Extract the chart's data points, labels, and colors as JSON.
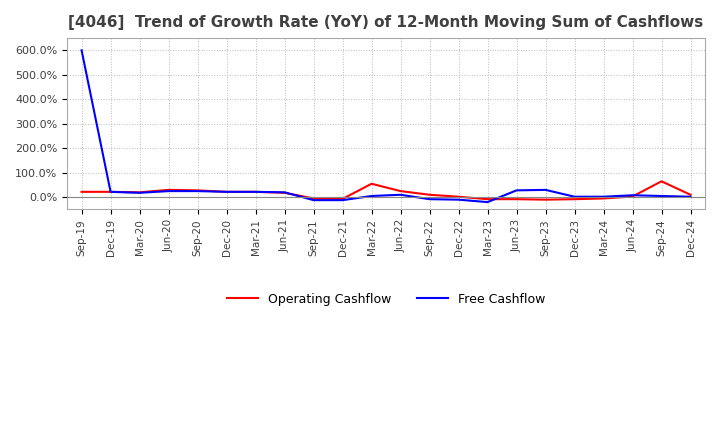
{
  "title": "[4046]  Trend of Growth Rate (YoY) of 12-Month Moving Sum of Cashflows",
  "title_color": "#404040",
  "background_color": "#ffffff",
  "grid_color": "#bbbbbb",
  "xlabels": [
    "Sep-19",
    "Dec-19",
    "Mar-20",
    "Jun-20",
    "Sep-20",
    "Dec-20",
    "Mar-21",
    "Jun-21",
    "Sep-21",
    "Dec-21",
    "Mar-22",
    "Jun-22",
    "Sep-22",
    "Dec-22",
    "Mar-23",
    "Jun-23",
    "Sep-23",
    "Dec-23",
    "Mar-24",
    "Jun-24",
    "Sep-24",
    "Dec-24"
  ],
  "operating_cashflow": [
    0.22,
    0.22,
    0.2,
    0.3,
    0.28,
    0.22,
    0.22,
    0.18,
    -0.05,
    -0.07,
    0.55,
    0.25,
    0.1,
    0.02,
    -0.08,
    -0.08,
    -0.1,
    -0.08,
    -0.05,
    0.03,
    0.65,
    0.1
  ],
  "free_cashflow": [
    6.0,
    0.22,
    0.18,
    0.25,
    0.25,
    0.22,
    0.22,
    0.2,
    -0.12,
    -0.12,
    0.05,
    0.1,
    -0.08,
    -0.1,
    -0.2,
    0.28,
    0.3,
    0.02,
    0.02,
    0.08,
    0.05,
    0.02
  ],
  "operating_color": "#ff0000",
  "free_color": "#0000ff",
  "ylim_min": -0.5,
  "ylim_max": 6.5,
  "ytick_vals": [
    0.0,
    1.0,
    2.0,
    3.0,
    4.0,
    5.0,
    6.0
  ],
  "ytick_labels": [
    "0.0%",
    "100.0%",
    "200.0%",
    "300.0%",
    "400.0%",
    "500.0%",
    "600.0%"
  ],
  "legend_labels": [
    "Operating Cashflow",
    "Free Cashflow"
  ]
}
